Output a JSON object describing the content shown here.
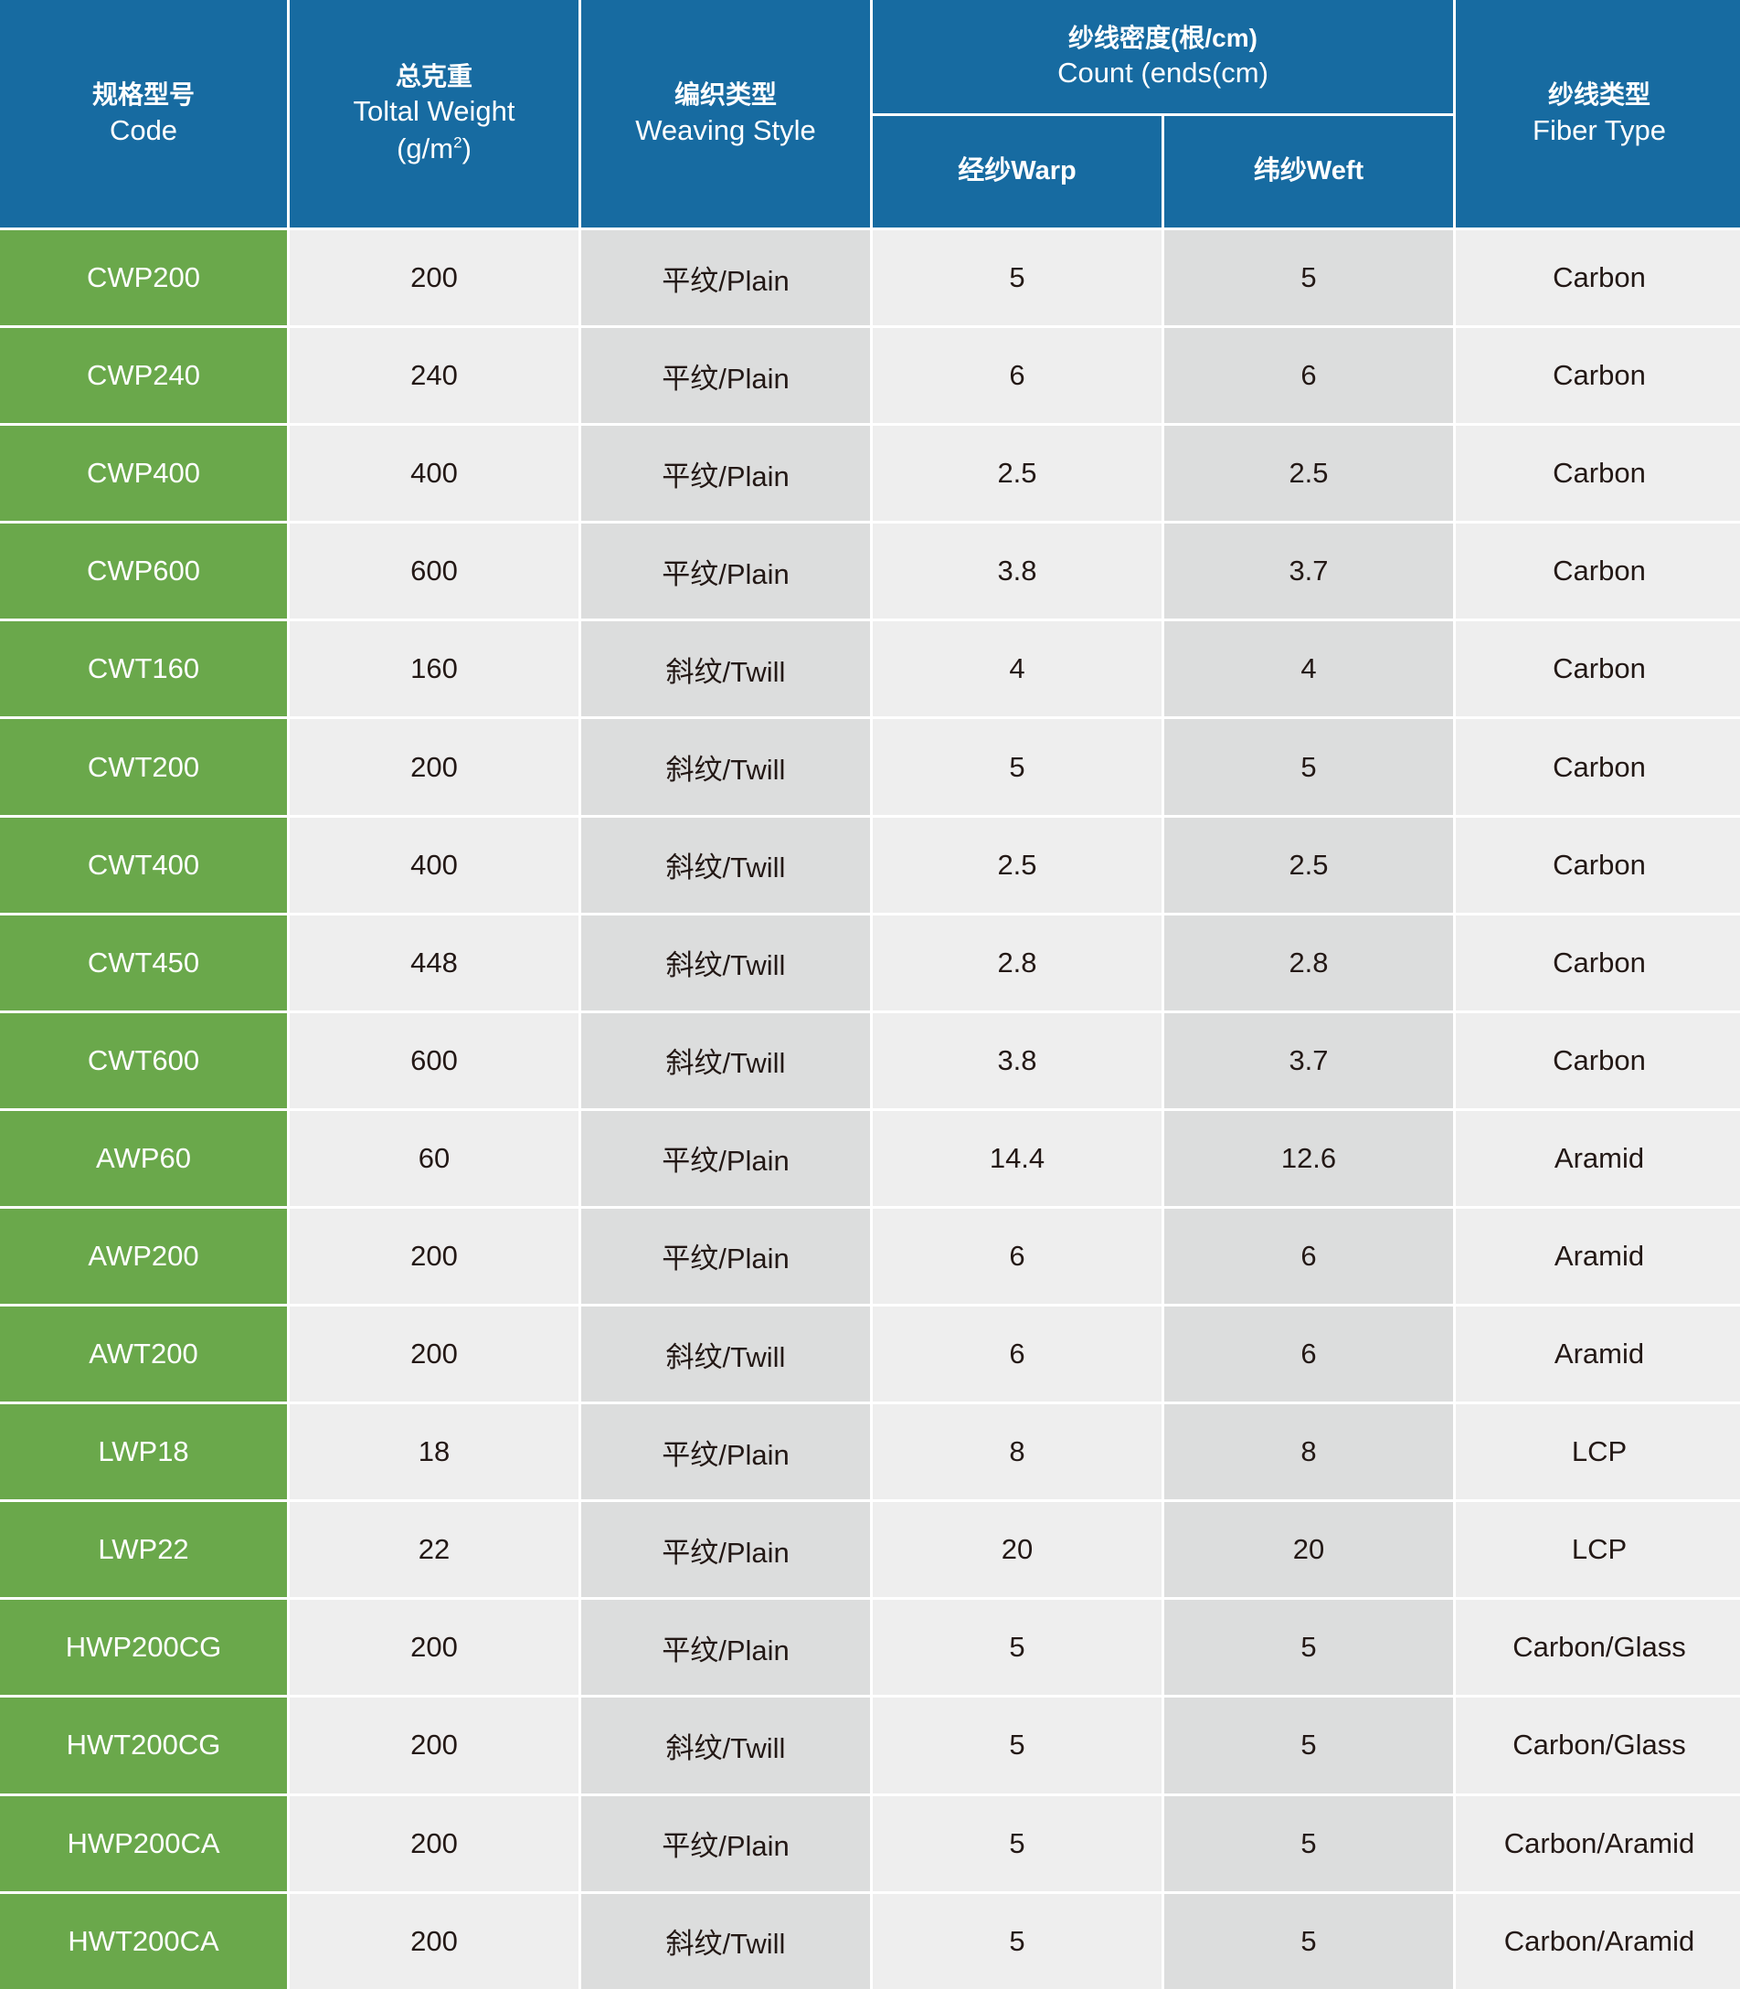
{
  "header": {
    "code": {
      "zh": "规格型号",
      "en": "Code"
    },
    "weight": {
      "zh": "总克重",
      "en": "Toltal Weight",
      "unit_pre": "(g/m",
      "unit_sup": "2",
      "unit_post": ")"
    },
    "weaving": {
      "zh": "编织类型",
      "en": "Weaving Style"
    },
    "count": {
      "zh": "纱线密度(根/cm)",
      "en": "Count (ends(cm)"
    },
    "warp": "经纱Warp",
    "weft": "纬纱Weft",
    "fiber": {
      "zh": "纱线类型",
      "en": "Fiber Type"
    }
  },
  "colors": {
    "header": "#176ba1",
    "code_column": "#6aa84b",
    "light_cell": "#eeeeee",
    "dark_cell": "#dcdddd"
  },
  "rows": [
    {
      "code": "CWP200",
      "weight": "200",
      "weaving": "平纹/Plain",
      "warp": "5",
      "weft": "5",
      "fiber": "Carbon"
    },
    {
      "code": "CWP240",
      "weight": "240",
      "weaving": "平纹/Plain",
      "warp": "6",
      "weft": "6",
      "fiber": "Carbon"
    },
    {
      "code": "CWP400",
      "weight": "400",
      "weaving": "平纹/Plain",
      "warp": "2.5",
      "weft": "2.5",
      "fiber": "Carbon"
    },
    {
      "code": "CWP600",
      "weight": "600",
      "weaving": "平纹/Plain",
      "warp": "3.8",
      "weft": "3.7",
      "fiber": "Carbon"
    },
    {
      "code": "CWT160",
      "weight": "160",
      "weaving": "斜纹/Twill",
      "warp": "4",
      "weft": "4",
      "fiber": "Carbon"
    },
    {
      "code": "CWT200",
      "weight": "200",
      "weaving": "斜纹/Twill",
      "warp": "5",
      "weft": "5",
      "fiber": "Carbon"
    },
    {
      "code": "CWT400",
      "weight": "400",
      "weaving": "斜纹/Twill",
      "warp": "2.5",
      "weft": "2.5",
      "fiber": "Carbon"
    },
    {
      "code": "CWT450",
      "weight": "448",
      "weaving": "斜纹/Twill",
      "warp": "2.8",
      "weft": "2.8",
      "fiber": "Carbon"
    },
    {
      "code": "CWT600",
      "weight": "600",
      "weaving": "斜纹/Twill",
      "warp": "3.8",
      "weft": "3.7",
      "fiber": "Carbon"
    },
    {
      "code": "AWP60",
      "weight": "60",
      "weaving": "平纹/Plain",
      "warp": "14.4",
      "weft": "12.6",
      "fiber": "Aramid"
    },
    {
      "code": "AWP200",
      "weight": "200",
      "weaving": "平纹/Plain",
      "warp": "6",
      "weft": "6",
      "fiber": "Aramid"
    },
    {
      "code": "AWT200",
      "weight": "200",
      "weaving": "斜纹/Twill",
      "warp": "6",
      "weft": "6",
      "fiber": "Aramid"
    },
    {
      "code": "LWP18",
      "weight": "18",
      "weaving": "平纹/Plain",
      "warp": "8",
      "weft": "8",
      "fiber": "LCP"
    },
    {
      "code": "LWP22",
      "weight": "22",
      "weaving": "平纹/Plain",
      "warp": "20",
      "weft": "20",
      "fiber": "LCP"
    },
    {
      "code": "HWP200CG",
      "weight": "200",
      "weaving": "平纹/Plain",
      "warp": "5",
      "weft": "5",
      "fiber": "Carbon/Glass"
    },
    {
      "code": "HWT200CG",
      "weight": "200",
      "weaving": "斜纹/Twill",
      "warp": "5",
      "weft": "5",
      "fiber": "Carbon/Glass"
    },
    {
      "code": "HWP200CA",
      "weight": "200",
      "weaving": "平纹/Plain",
      "warp": "5",
      "weft": "5",
      "fiber": "Carbon/Aramid"
    },
    {
      "code": "HWT200CA",
      "weight": "200",
      "weaving": "斜纹/Twill",
      "warp": "5",
      "weft": "5",
      "fiber": "Carbon/Aramid"
    }
  ]
}
